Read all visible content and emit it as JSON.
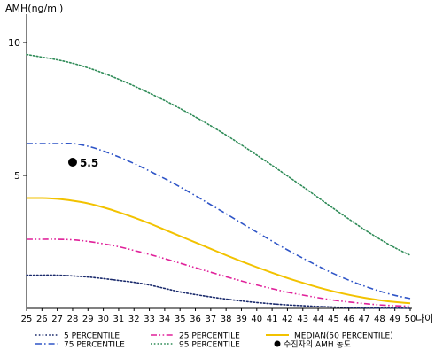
{
  "chart_data": {
    "type": "line",
    "ylabel": "AMH(ng/ml)",
    "xlabel": "나이",
    "x": [
      25,
      26,
      27,
      28,
      29,
      30,
      31,
      32,
      33,
      34,
      35,
      36,
      37,
      38,
      39,
      40,
      41,
      42,
      43,
      44,
      45,
      46,
      47,
      48,
      49,
      50
    ],
    "x_tick_labels": [
      "25",
      "26",
      "27",
      "28",
      "29",
      "30",
      "31",
      "32",
      "33",
      "34",
      "35",
      "36",
      "37",
      "38",
      "39",
      "40",
      "41",
      "42",
      "43",
      "44",
      "45",
      "46",
      "47",
      "48",
      "49",
      "50"
    ],
    "xlim": [
      25,
      50
    ],
    "ylim": [
      0,
      11
    ],
    "y_ticks": [
      5,
      10
    ],
    "y_tick_labels": [
      "5",
      "10"
    ],
    "grid": false,
    "legend_position": "bottom",
    "series": [
      {
        "name": "5 PERCENTILE",
        "color": "#1a2a6c",
        "line_style": "dotted",
        "values": [
          1.25,
          1.25,
          1.25,
          1.22,
          1.18,
          1.12,
          1.05,
          0.98,
          0.88,
          0.75,
          0.62,
          0.52,
          0.43,
          0.35,
          0.28,
          0.22,
          0.17,
          0.13,
          0.1,
          0.07,
          0.05,
          0.03,
          0.02,
          0.01,
          0.01,
          0.0
        ]
      },
      {
        "name": "25 PERCENTILE",
        "color": "#e0219a",
        "line_style": "dash-dot-dot",
        "values": [
          2.6,
          2.6,
          2.6,
          2.58,
          2.52,
          2.43,
          2.32,
          2.18,
          2.03,
          1.87,
          1.7,
          1.53,
          1.36,
          1.19,
          1.03,
          0.88,
          0.74,
          0.61,
          0.5,
          0.4,
          0.31,
          0.24,
          0.18,
          0.13,
          0.1,
          0.08
        ]
      },
      {
        "name": "MEDIAN(50 PERCENTILE)",
        "color": "#f2c200",
        "line_style": "solid",
        "values": [
          4.15,
          4.15,
          4.12,
          4.05,
          3.95,
          3.8,
          3.62,
          3.42,
          3.2,
          2.96,
          2.72,
          2.48,
          2.24,
          2.0,
          1.77,
          1.55,
          1.34,
          1.14,
          0.96,
          0.79,
          0.64,
          0.51,
          0.4,
          0.31,
          0.24,
          0.19
        ]
      },
      {
        "name": "75 PERCENTILE",
        "color": "#2f55c7",
        "line_style": "dash-dot",
        "values": [
          6.2,
          6.2,
          6.2,
          6.2,
          6.1,
          5.92,
          5.7,
          5.45,
          5.17,
          4.88,
          4.57,
          4.24,
          3.9,
          3.56,
          3.21,
          2.87,
          2.53,
          2.2,
          1.89,
          1.59,
          1.31,
          1.06,
          0.84,
          0.65,
          0.49,
          0.37
        ]
      },
      {
        "name": "95 PERCENTILE",
        "color": "#2e8b57",
        "line_style": "dotted",
        "values": [
          9.55,
          9.45,
          9.35,
          9.22,
          9.05,
          8.85,
          8.62,
          8.37,
          8.1,
          7.82,
          7.52,
          7.2,
          6.87,
          6.52,
          6.15,
          5.77,
          5.38,
          4.98,
          4.58,
          4.17,
          3.76,
          3.36,
          2.97,
          2.61,
          2.28,
          2.0
        ]
      }
    ],
    "annotation": {
      "x": 28,
      "y": 5.5,
      "label": "5.5",
      "legend_label": "수진자의 AMH 농도"
    }
  }
}
